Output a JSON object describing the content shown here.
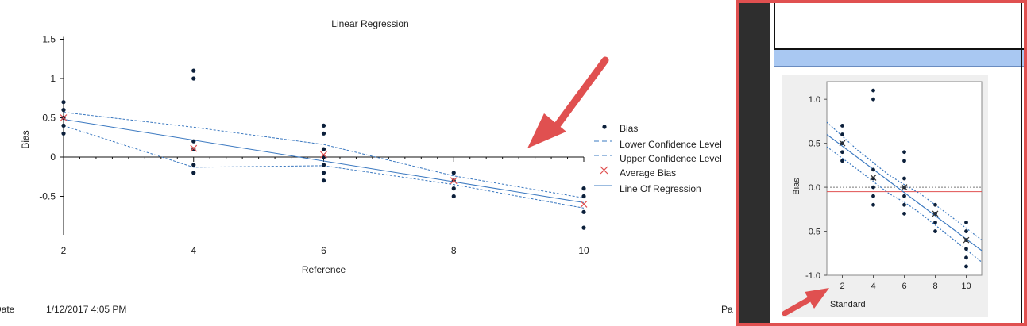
{
  "footer": {
    "date_label": "Date",
    "date_value": "1/12/2017 4:05 PM",
    "page_label": "Pa"
  },
  "colors": {
    "point": "#0b1f3a",
    "regression_line": "#3a78c0",
    "confidence": "#3a78c0",
    "average_bias": "#e05050",
    "zero_line_right": "#e05050",
    "annotation_arrow": "#e05050",
    "panel_bg": "#efefef"
  },
  "chart_data": [
    {
      "type": "scatter",
      "title": "Linear Regression",
      "xlabel": "Reference",
      "ylabel": "Bias",
      "x_ticks": [
        "2",
        "4",
        "6",
        "8",
        "10"
      ],
      "y_ticks": [
        "1.5",
        "1",
        "0.5",
        "0",
        "-0.5"
      ],
      "xlim": [
        2,
        10
      ],
      "ylim": [
        -1,
        1.5
      ],
      "legend_position": "right",
      "legend": [
        "Bias",
        "Lower Confidence Level",
        "Upper Confidence Level",
        "Average Bias",
        "Line Of Regression"
      ],
      "points": [
        {
          "x": 2,
          "y": 0.7
        },
        {
          "x": 2,
          "y": 0.6
        },
        {
          "x": 2,
          "y": 0.5
        },
        {
          "x": 2,
          "y": 0.4
        },
        {
          "x": 2,
          "y": 0.3
        },
        {
          "x": 4,
          "y": 1.1
        },
        {
          "x": 4,
          "y": 1.0
        },
        {
          "x": 4,
          "y": 0.2
        },
        {
          "x": 4,
          "y": 0.1
        },
        {
          "x": 4,
          "y": -0.1
        },
        {
          "x": 4,
          "y": -0.2
        },
        {
          "x": 6,
          "y": 0.4
        },
        {
          "x": 6,
          "y": 0.3
        },
        {
          "x": 6,
          "y": 0.1
        },
        {
          "x": 6,
          "y": 0.0
        },
        {
          "x": 6,
          "y": -0.1
        },
        {
          "x": 6,
          "y": -0.2
        },
        {
          "x": 6,
          "y": -0.3
        },
        {
          "x": 8,
          "y": -0.2
        },
        {
          "x": 8,
          "y": -0.3
        },
        {
          "x": 8,
          "y": -0.4
        },
        {
          "x": 8,
          "y": -0.5
        },
        {
          "x": 10,
          "y": -0.4
        },
        {
          "x": 10,
          "y": -0.5
        },
        {
          "x": 10,
          "y": -0.7
        },
        {
          "x": 10,
          "y": -0.9
        }
      ],
      "average_bias": [
        {
          "x": 2,
          "y": 0.5
        },
        {
          "x": 4,
          "y": 0.11
        },
        {
          "x": 6,
          "y": 0.03
        },
        {
          "x": 8,
          "y": -0.3
        },
        {
          "x": 10,
          "y": -0.6
        }
      ],
      "regression_line": [
        [
          2,
          0.48
        ],
        [
          10,
          -0.58
        ]
      ],
      "upper_confidence": [
        [
          2,
          0.57
        ],
        [
          4,
          0.38
        ],
        [
          6,
          0.16
        ],
        [
          8,
          -0.24
        ],
        [
          10,
          -0.52
        ]
      ],
      "lower_confidence": [
        [
          2,
          0.4
        ],
        [
          4,
          -0.13
        ],
        [
          6,
          -0.11
        ],
        [
          8,
          -0.35
        ],
        [
          10,
          -0.65
        ]
      ]
    },
    {
      "type": "scatter",
      "xlabel": "Standard",
      "ylabel": "Bias",
      "x_ticks": [
        "2",
        "4",
        "6",
        "8",
        "10"
      ],
      "y_ticks": [
        "1.0",
        "0.5",
        "0.0",
        "-0.5",
        "-1.0"
      ],
      "xlim": [
        1,
        11
      ],
      "ylim": [
        -1.0,
        1.2
      ],
      "reference_lines": {
        "zero_dotted": 0.0,
        "average_bias_solid": -0.05
      },
      "points": [
        {
          "x": 2,
          "y": 0.7
        },
        {
          "x": 2,
          "y": 0.6
        },
        {
          "x": 2,
          "y": 0.5
        },
        {
          "x": 2,
          "y": 0.4
        },
        {
          "x": 2,
          "y": 0.3
        },
        {
          "x": 4,
          "y": 1.1
        },
        {
          "x": 4,
          "y": 1.0
        },
        {
          "x": 4,
          "y": 0.2
        },
        {
          "x": 4,
          "y": 0.1
        },
        {
          "x": 4,
          "y": 0.0
        },
        {
          "x": 4,
          "y": -0.1
        },
        {
          "x": 4,
          "y": -0.2
        },
        {
          "x": 6,
          "y": 0.4
        },
        {
          "x": 6,
          "y": 0.3
        },
        {
          "x": 6,
          "y": 0.1
        },
        {
          "x": 6,
          "y": 0.0
        },
        {
          "x": 6,
          "y": -0.1
        },
        {
          "x": 6,
          "y": -0.2
        },
        {
          "x": 6,
          "y": -0.3
        },
        {
          "x": 8,
          "y": -0.2
        },
        {
          "x": 8,
          "y": -0.3
        },
        {
          "x": 8,
          "y": -0.4
        },
        {
          "x": 8,
          "y": -0.5
        },
        {
          "x": 10,
          "y": -0.4
        },
        {
          "x": 10,
          "y": -0.5
        },
        {
          "x": 10,
          "y": -0.6
        },
        {
          "x": 10,
          "y": -0.7
        },
        {
          "x": 10,
          "y": -0.8
        },
        {
          "x": 10,
          "y": -0.9
        }
      ],
      "average_bias": [
        {
          "x": 2,
          "y": 0.5
        },
        {
          "x": 4,
          "y": 0.11
        },
        {
          "x": 6,
          "y": 0.0
        },
        {
          "x": 8,
          "y": -0.3
        },
        {
          "x": 10,
          "y": -0.6
        }
      ],
      "regression_line": [
        [
          1,
          0.6
        ],
        [
          11,
          -0.72
        ]
      ],
      "upper_confidence": [
        [
          1,
          0.74
        ],
        [
          3,
          0.42
        ],
        [
          5,
          0.14
        ],
        [
          6,
          0.03
        ],
        [
          7,
          -0.07
        ],
        [
          9,
          -0.33
        ],
        [
          11,
          -0.6
        ]
      ],
      "lower_confidence": [
        [
          1,
          0.46
        ],
        [
          3,
          0.2
        ],
        [
          5,
          -0.07
        ],
        [
          6,
          -0.17
        ],
        [
          7,
          -0.29
        ],
        [
          9,
          -0.57
        ],
        [
          11,
          -0.85
        ]
      ]
    }
  ]
}
